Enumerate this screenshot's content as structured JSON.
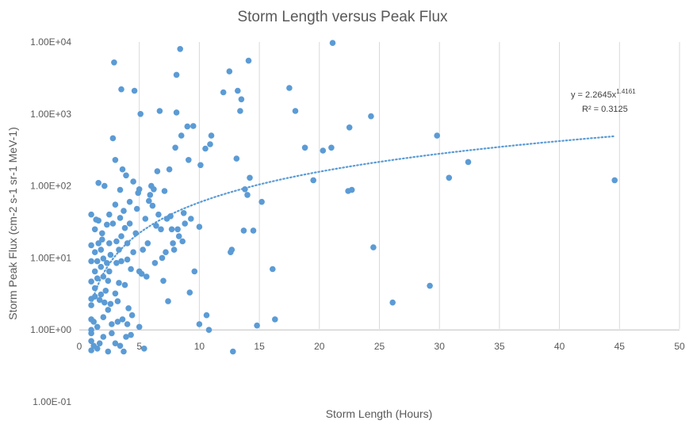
{
  "chart_data": {
    "type": "scatter",
    "title": "Storm Length versus Peak Flux",
    "xlabel": "Storm Length (Hours)",
    "ylabel": "Storm Peak Flux (cm-2 s-1 sr-1 MeV-1)",
    "xlim": [
      0,
      50
    ],
    "ylim": [
      0.1,
      10000
    ],
    "y_scale": "log",
    "grid": "vertical gridlines only",
    "marker_color": "#5B9BD5",
    "x_ticks": [
      "0",
      "5",
      "10",
      "15",
      "20",
      "25",
      "30",
      "35",
      "40",
      "45",
      "50"
    ],
    "y_ticks": [
      "1.00E-01",
      "1.00E+00",
      "1.00E+01",
      "1.00E+02",
      "1.00E+03",
      "1.00E+04"
    ],
    "trendline": {
      "type": "power",
      "a": 2.2645,
      "b": 1.4161,
      "x_range": [
        1,
        44.5
      ],
      "equation_prefix": "y = 2.2645x",
      "equation_exponent": "1.4161",
      "r_squared_label": "R² = 0.3125"
    },
    "points": [
      [
        1,
        0.52
      ],
      [
        1,
        0.7
      ],
      [
        1,
        0.9
      ],
      [
        1,
        1.0
      ],
      [
        1,
        1.4
      ],
      [
        1,
        2.2
      ],
      [
        1,
        2.7
      ],
      [
        1,
        4.7
      ],
      [
        1,
        9
      ],
      [
        1,
        15
      ],
      [
        1,
        40
      ],
      [
        1.2,
        0.6
      ],
      [
        1.2,
        1.3
      ],
      [
        1.3,
        2.9
      ],
      [
        1.3,
        3.8
      ],
      [
        1.3,
        6.5
      ],
      [
        1.3,
        12
      ],
      [
        1.3,
        25
      ],
      [
        1.4,
        34
      ],
      [
        1.5,
        0.55
      ],
      [
        1.5,
        1.1
      ],
      [
        1.5,
        5.2
      ],
      [
        1.5,
        9
      ],
      [
        1.6,
        16
      ],
      [
        1.6,
        33
      ],
      [
        1.6,
        110
      ],
      [
        1.7,
        0.65
      ],
      [
        1.7,
        2.6
      ],
      [
        1.8,
        3.1
      ],
      [
        1.8,
        7.5
      ],
      [
        1.8,
        13
      ],
      [
        1.9,
        22
      ],
      [
        1.9,
        18
      ],
      [
        2,
        0.8
      ],
      [
        2,
        1.5
      ],
      [
        2,
        5.5
      ],
      [
        2,
        9.8
      ],
      [
        2.1,
        2.4
      ],
      [
        2.1,
        100
      ],
      [
        2.2,
        3.5
      ],
      [
        2.3,
        8.5
      ],
      [
        2.3,
        29
      ],
      [
        2.4,
        0.5
      ],
      [
        2.4,
        1.9
      ],
      [
        2.4,
        4.8
      ],
      [
        2.5,
        6.5
      ],
      [
        2.5,
        16
      ],
      [
        2.5,
        40
      ],
      [
        2.6,
        2.3
      ],
      [
        2.6,
        11
      ],
      [
        2.7,
        0.9
      ],
      [
        2.7,
        1.2
      ],
      [
        2.8,
        30
      ],
      [
        2.8,
        460
      ],
      [
        2.9,
        5200
      ],
      [
        3,
        0.65
      ],
      [
        3,
        3.2
      ],
      [
        3,
        55
      ],
      [
        3,
        230
      ],
      [
        3.1,
        8.5
      ],
      [
        3.1,
        17
      ],
      [
        3.2,
        1.3
      ],
      [
        3.2,
        2.5
      ],
      [
        3.3,
        4.5
      ],
      [
        3.3,
        13
      ],
      [
        3.4,
        0.6
      ],
      [
        3.4,
        36
      ],
      [
        3.4,
        88
      ],
      [
        3.5,
        2200
      ],
      [
        3.5,
        9
      ],
      [
        3.5,
        20
      ],
      [
        3.6,
        1.4
      ],
      [
        3.6,
        170
      ],
      [
        3.7,
        0.5
      ],
      [
        3.7,
        45
      ],
      [
        3.8,
        4.2
      ],
      [
        3.8,
        26
      ],
      [
        3.9,
        140
      ],
      [
        3.9,
        0.8
      ],
      [
        4,
        1.2
      ],
      [
        4,
        9.5
      ],
      [
        4,
        16
      ],
      [
        4.1,
        2
      ],
      [
        4.2,
        30
      ],
      [
        4.2,
        60
      ],
      [
        4.3,
        0.85
      ],
      [
        4.3,
        7
      ],
      [
        4.4,
        1.6
      ],
      [
        4.5,
        12
      ],
      [
        4.5,
        115
      ],
      [
        4.6,
        2100
      ],
      [
        4.7,
        22
      ],
      [
        4.8,
        48
      ],
      [
        4.9,
        80
      ],
      [
        5,
        1.1
      ],
      [
        5,
        6.5
      ],
      [
        5,
        90
      ],
      [
        5.1,
        1000
      ],
      [
        5.2,
        6
      ],
      [
        5.3,
        13
      ],
      [
        5.4,
        0.55
      ],
      [
        5.5,
        35
      ],
      [
        5.6,
        5.5
      ],
      [
        5.7,
        16
      ],
      [
        5.8,
        62
      ],
      [
        5.9,
        75
      ],
      [
        6,
        100
      ],
      [
        6.1,
        53
      ],
      [
        6.2,
        90
      ],
      [
        6.3,
        8.5
      ],
      [
        6.4,
        28
      ],
      [
        6.5,
        160
      ],
      [
        6.6,
        40
      ],
      [
        6.7,
        1100
      ],
      [
        6.8,
        25
      ],
      [
        6.9,
        10
      ],
      [
        7,
        4.8
      ],
      [
        7.1,
        85
      ],
      [
        7.2,
        12
      ],
      [
        7.3,
        35
      ],
      [
        7.4,
        2.5
      ],
      [
        7.5,
        170
      ],
      [
        7.6,
        38
      ],
      [
        7.7,
        25
      ],
      [
        7.8,
        16
      ],
      [
        7.9,
        13
      ],
      [
        8,
        340
      ],
      [
        8.1,
        3500
      ],
      [
        8.1,
        1050
      ],
      [
        8.2,
        25
      ],
      [
        8.3,
        20
      ],
      [
        8.4,
        8000
      ],
      [
        8.5,
        500
      ],
      [
        8.6,
        17
      ],
      [
        8.7,
        42
      ],
      [
        8.8,
        30
      ],
      [
        9,
        670
      ],
      [
        9.1,
        230
      ],
      [
        9.2,
        3.3
      ],
      [
        9.3,
        35
      ],
      [
        9.5,
        680
      ],
      [
        9.6,
        6.5
      ],
      [
        10,
        1.2
      ],
      [
        10,
        27
      ],
      [
        10.1,
        195
      ],
      [
        10.5,
        330
      ],
      [
        10.6,
        1.6
      ],
      [
        10.8,
        1.0
      ],
      [
        10.9,
        380
      ],
      [
        11,
        500
      ],
      [
        12,
        2000
      ],
      [
        12.5,
        3900
      ],
      [
        12.6,
        12
      ],
      [
        12.7,
        13
      ],
      [
        12.8,
        0.5
      ],
      [
        13.1,
        240
      ],
      [
        13.2,
        2100
      ],
      [
        13.4,
        1100
      ],
      [
        13.5,
        1600
      ],
      [
        13.7,
        24
      ],
      [
        13.8,
        90
      ],
      [
        14,
        75
      ],
      [
        14.1,
        5500
      ],
      [
        14.2,
        130
      ],
      [
        14.5,
        24
      ],
      [
        14.8,
        1.15
      ],
      [
        15.2,
        60
      ],
      [
        16.1,
        7
      ],
      [
        16.3,
        1.4
      ],
      [
        17.5,
        2300
      ],
      [
        18,
        1100
      ],
      [
        18.8,
        340
      ],
      [
        19.5,
        120
      ],
      [
        20.3,
        310
      ],
      [
        21,
        340
      ],
      [
        21.1,
        9700
      ],
      [
        22.4,
        85
      ],
      [
        22.5,
        650
      ],
      [
        22.7,
        88
      ],
      [
        24.3,
        930
      ],
      [
        24.5,
        14
      ],
      [
        26.1,
        2.4
      ],
      [
        29.2,
        4.1
      ],
      [
        29.8,
        500
      ],
      [
        30.8,
        130
      ],
      [
        32.4,
        215
      ],
      [
        44.6,
        120
      ]
    ]
  }
}
